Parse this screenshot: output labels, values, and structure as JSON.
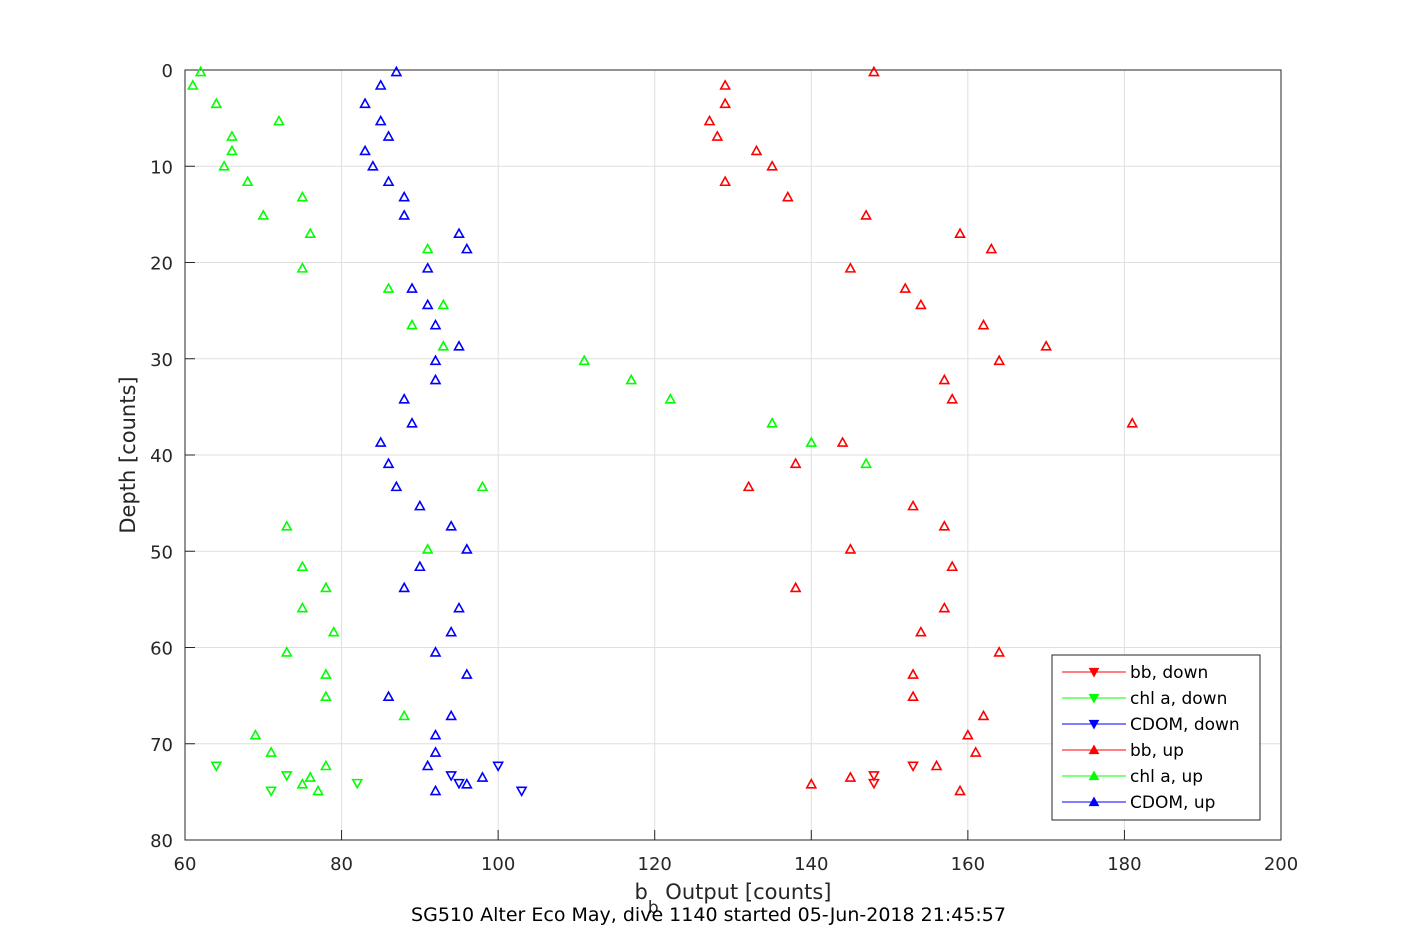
{
  "chart_data": {
    "type": "scatter",
    "xlabel": "b_b Output [counts]",
    "xlabel_main": "b",
    "xlabel_sub": "b",
    "xlabel_rest": " Output [counts]",
    "ylabel": "Depth [counts]",
    "caption": "SG510 Alter Eco May, dive 1140 started 05-Jun-2018 21:45:57",
    "xlim": [
      60,
      200
    ],
    "ylim": [
      0,
      80
    ],
    "y_reversed": true,
    "grid": true,
    "legend_position": "bottom-right",
    "xticks": [
      60,
      80,
      100,
      120,
      140,
      160,
      180,
      200
    ],
    "yticks": [
      0,
      10,
      20,
      30,
      40,
      50,
      60,
      70,
      80
    ],
    "series": [
      {
        "name": "bb, down",
        "color": "#ff0000",
        "marker": "triangle-down",
        "points": [
          [
            148,
            73.3
          ],
          [
            148,
            74.1
          ],
          [
            153,
            72.3
          ]
        ]
      },
      {
        "name": "chl a, down",
        "color": "#00ff00",
        "marker": "triangle-down",
        "points": [
          [
            64,
            72.3
          ],
          [
            73,
            73.3
          ],
          [
            82,
            74.1
          ],
          [
            71,
            74.9
          ]
        ]
      },
      {
        "name": "CDOM, down",
        "color": "#0000ff",
        "marker": "triangle-down",
        "points": [
          [
            100,
            72.3
          ],
          [
            94,
            73.3
          ],
          [
            95,
            74.1
          ],
          [
            103,
            74.9
          ]
        ]
      },
      {
        "name": "bb, up",
        "color": "#ff0000",
        "marker": "triangle-up",
        "points": [
          [
            148,
            0.2
          ],
          [
            129,
            1.6
          ],
          [
            129,
            3.5
          ],
          [
            127,
            5.3
          ],
          [
            128,
            6.9
          ],
          [
            133,
            8.4
          ],
          [
            135,
            10
          ],
          [
            129,
            11.6
          ],
          [
            137,
            13.2
          ],
          [
            147,
            15.1
          ],
          [
            159,
            17
          ],
          [
            163,
            18.6
          ],
          [
            145,
            20.6
          ],
          [
            152,
            22.7
          ],
          [
            154,
            24.4
          ],
          [
            162,
            26.5
          ],
          [
            170,
            28.7
          ],
          [
            164,
            30.2
          ],
          [
            157,
            32.2
          ],
          [
            158,
            34.2
          ],
          [
            181,
            36.7
          ],
          [
            144,
            38.7
          ],
          [
            138,
            40.9
          ],
          [
            132,
            43.3
          ],
          [
            153,
            45.3
          ],
          [
            157,
            47.4
          ],
          [
            145,
            49.8
          ],
          [
            158,
            51.6
          ],
          [
            138,
            53.8
          ],
          [
            157,
            55.9
          ],
          [
            154,
            58.4
          ],
          [
            164,
            60.5
          ],
          [
            153,
            62.8
          ],
          [
            153,
            65.1
          ],
          [
            162,
            67.1
          ],
          [
            160,
            69.1
          ],
          [
            161,
            70.9
          ],
          [
            156,
            72.3
          ],
          [
            145,
            73.5
          ],
          [
            140,
            74.2
          ],
          [
            159,
            74.9
          ]
        ]
      },
      {
        "name": "chl a, up",
        "color": "#00ff00",
        "marker": "triangle-up",
        "points": [
          [
            62,
            0.2
          ],
          [
            61,
            1.6
          ],
          [
            64,
            3.5
          ],
          [
            72,
            5.3
          ],
          [
            66,
            6.9
          ],
          [
            66,
            8.4
          ],
          [
            65,
            10
          ],
          [
            68,
            11.6
          ],
          [
            75,
            13.2
          ],
          [
            70,
            15.1
          ],
          [
            76,
            17
          ],
          [
            91,
            18.6
          ],
          [
            75,
            20.6
          ],
          [
            86,
            22.7
          ],
          [
            93,
            24.4
          ],
          [
            89,
            26.5
          ],
          [
            93,
            28.7
          ],
          [
            111,
            30.2
          ],
          [
            117,
            32.2
          ],
          [
            122,
            34.2
          ],
          [
            135,
            36.7
          ],
          [
            140,
            38.7
          ],
          [
            147,
            40.9
          ],
          [
            98,
            43.3
          ],
          [
            73,
            47.4
          ],
          [
            91,
            49.8
          ],
          [
            75,
            51.6
          ],
          [
            78,
            53.8
          ],
          [
            75,
            55.9
          ],
          [
            79,
            58.4
          ],
          [
            73,
            60.5
          ],
          [
            78,
            62.8
          ],
          [
            78,
            65.1
          ],
          [
            88,
            67.1
          ],
          [
            69,
            69.1
          ],
          [
            71,
            70.9
          ],
          [
            78,
            72.3
          ],
          [
            76,
            73.5
          ],
          [
            75,
            74.2
          ],
          [
            77,
            74.9
          ]
        ]
      },
      {
        "name": "CDOM, up",
        "color": "#0000ff",
        "marker": "triangle-up",
        "points": [
          [
            87,
            0.2
          ],
          [
            85,
            1.6
          ],
          [
            83,
            3.5
          ],
          [
            85,
            5.3
          ],
          [
            86,
            6.9
          ],
          [
            83,
            8.4
          ],
          [
            84,
            10
          ],
          [
            86,
            11.6
          ],
          [
            88,
            13.2
          ],
          [
            88,
            15.1
          ],
          [
            95,
            17
          ],
          [
            96,
            18.6
          ],
          [
            91,
            20.6
          ],
          [
            89,
            22.7
          ],
          [
            91,
            24.4
          ],
          [
            92,
            26.5
          ],
          [
            95,
            28.7
          ],
          [
            92,
            30.2
          ],
          [
            92,
            32.2
          ],
          [
            88,
            34.2
          ],
          [
            89,
            36.7
          ],
          [
            85,
            38.7
          ],
          [
            86,
            40.9
          ],
          [
            87,
            43.3
          ],
          [
            90,
            45.3
          ],
          [
            94,
            47.4
          ],
          [
            96,
            49.8
          ],
          [
            90,
            51.6
          ],
          [
            88,
            53.8
          ],
          [
            95,
            55.9
          ],
          [
            94,
            58.4
          ],
          [
            92,
            60.5
          ],
          [
            96,
            62.8
          ],
          [
            86,
            65.1
          ],
          [
            94,
            67.1
          ],
          [
            92,
            69.1
          ],
          [
            92,
            70.9
          ],
          [
            91,
            72.3
          ],
          [
            98,
            73.5
          ],
          [
            96,
            74.2
          ],
          [
            92,
            74.9
          ]
        ]
      }
    ]
  }
}
